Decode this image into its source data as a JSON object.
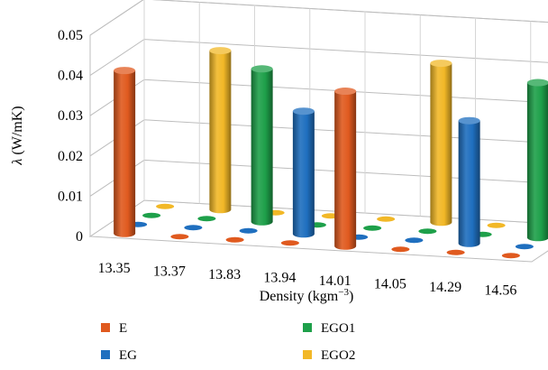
{
  "chart_data": {
    "type": "bar",
    "style": "3d-cylinder",
    "categories": [
      "13.35",
      "13.37",
      "13.83",
      "13.94",
      "14.01",
      "14.05",
      "14.29",
      "14.56"
    ],
    "series": [
      {
        "name": "E",
        "color": "#e05a1f",
        "values": [
          0.0405,
          0,
          0,
          0,
          0.0385,
          0,
          0,
          0
        ]
      },
      {
        "name": "EG",
        "color": "#1f6fbf",
        "values": [
          0,
          0,
          0,
          0.0305,
          0,
          0,
          0.0305,
          0
        ]
      },
      {
        "name": "EGO1",
        "color": "#1ea04a",
        "values": [
          0,
          0,
          0.038,
          0,
          0,
          0,
          0,
          0.0385
        ]
      },
      {
        "name": "EGO2",
        "color": "#f2b827",
        "values": [
          0,
          0.0395,
          0,
          0,
          0,
          0.0395,
          0,
          0
        ]
      }
    ],
    "y_ticks": [
      "0",
      "0.01",
      "0.02",
      "0.03",
      "0.04",
      "0.05"
    ],
    "ylim": [
      0,
      0.05
    ],
    "xlabel": "Density (kgm",
    "xlabel_sup": "−3",
    "xlabel_close": ")",
    "ylabel_symbol": "λ",
    "ylabel": " (W/mK)",
    "grid": true,
    "legend_position": "bottom"
  }
}
